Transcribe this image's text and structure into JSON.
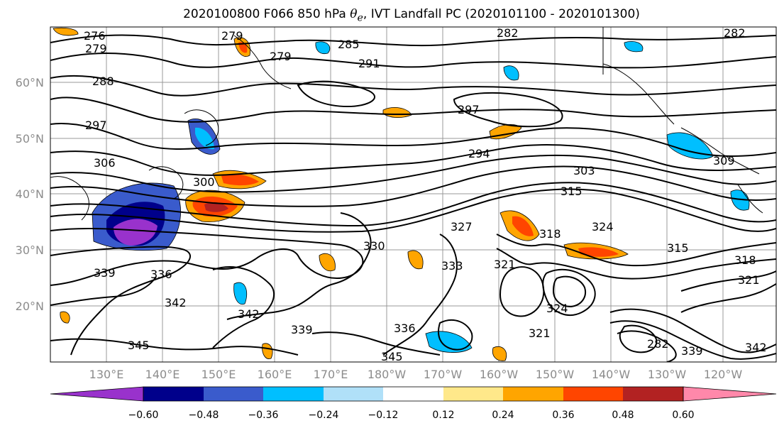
{
  "title_prefix": "2020100800 F066 850 hPa ",
  "title_symbol": "θ",
  "title_sub": "e",
  "title_suffix": ", IVT Landfall PC (2020101100 - 2020101300)",
  "lat_labels": [
    "60°N",
    "50°N",
    "40°N",
    "30°N",
    "20°N"
  ],
  "lon_labels": [
    "130°E",
    "140°E",
    "150°E",
    "160°E",
    "170°E",
    "180°W",
    "170°W",
    "160°W",
    "150°W",
    "140°W",
    "130°W",
    "120°W"
  ],
  "colorbar": {
    "ticks": [
      "−0.60",
      "−0.48",
      "−0.36",
      "−0.24",
      "−0.12",
      "0.12",
      "0.24",
      "0.36",
      "0.48",
      "0.60"
    ],
    "colors": [
      "#9932cc",
      "#00008b",
      "#3a5bcc",
      "#00bfff",
      "#b0e0f8",
      "#ffffff",
      "#ffe88a",
      "#ffa500",
      "#ff4500",
      "#b22222",
      "#ff88aa"
    ]
  },
  "contour_labels": [
    "276",
    "279",
    "282",
    "282",
    "279",
    "285",
    "291",
    "288",
    "297",
    "306",
    "294",
    "297",
    "300",
    "303",
    "315",
    "318",
    "309",
    "324",
    "327",
    "330",
    "333",
    "336",
    "339",
    "342",
    "342",
    "345",
    "345",
    "339",
    "336",
    "321",
    "321",
    "324",
    "318",
    "321",
    "315",
    "339",
    "342",
    "279",
    "282"
  ]
}
